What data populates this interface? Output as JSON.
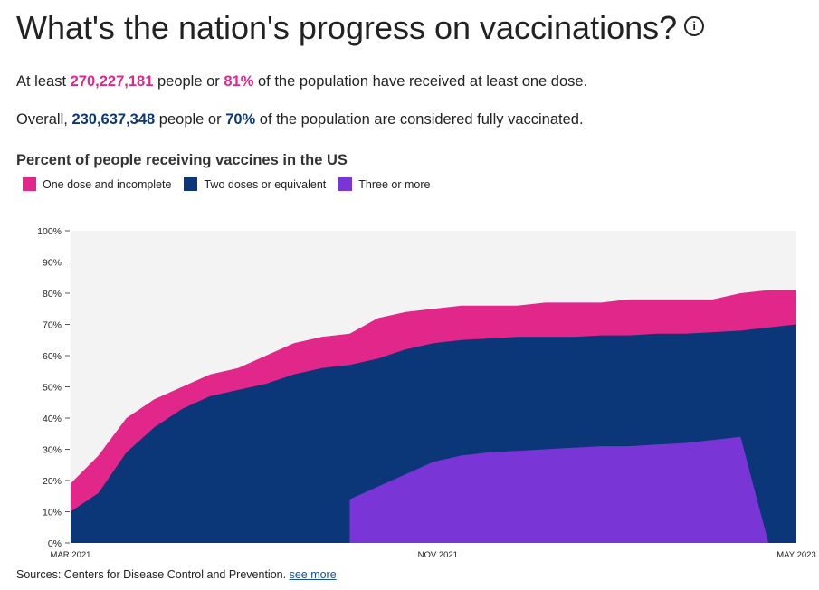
{
  "header": {
    "title": "What's the nation's progress on vaccinations?",
    "info_glyph": "i",
    "info_icon": "info-circle-icon"
  },
  "stats": {
    "line1_prefix": "At least ",
    "line1_count": "270,227,181",
    "line1_mid": " people or ",
    "line1_pct": "81%",
    "line1_suffix": " of the population have received at least one dose.",
    "line2_prefix": "Overall, ",
    "line2_count": "230,637,348",
    "line2_mid": " people or ",
    "line2_pct": "70%",
    "line2_suffix": " of the population are considered fully vaccinated."
  },
  "colors": {
    "one_dose": "#e1278a",
    "two_doses": "#0b3779",
    "three_plus": "#7a35d6",
    "plot_bg": "#f3f3f3"
  },
  "source": {
    "text": "Sources: Centers for Disease Control and Prevention.",
    "link": "see more"
  },
  "chart_data": {
    "type": "area",
    "title": "Percent of people receiving vaccines in the US",
    "xlabel": "",
    "ylabel": "",
    "x_ticks": [
      "MAR 2021",
      "NOV 2021",
      "MAY 2023"
    ],
    "y_ticks": [
      "0%",
      "10%",
      "20%",
      "30%",
      "40%",
      "50%",
      "60%",
      "70%",
      "80%",
      "90%",
      "100%"
    ],
    "ylim": [
      0,
      100
    ],
    "xlim": [
      "2021-03",
      "2023-05"
    ],
    "grid": false,
    "legend": "top-left",
    "x": [
      "2021-03",
      "2021-04",
      "2021-05",
      "2021-06",
      "2021-07",
      "2021-08",
      "2021-09",
      "2021-10",
      "2021-11",
      "2021-12",
      "2022-01",
      "2022-02",
      "2022-03",
      "2022-04",
      "2022-05",
      "2022-06",
      "2022-07",
      "2022-08",
      "2022-09",
      "2022-10",
      "2022-11",
      "2022-12",
      "2023-01",
      "2023-02",
      "2023-03",
      "2023-04",
      "2023-05"
    ],
    "series": [
      {
        "name": "One dose and incomplete",
        "color": "#e1278a",
        "values": [
          19,
          28,
          40,
          46,
          50,
          54,
          56,
          60,
          64,
          66,
          67,
          72,
          74,
          75,
          76,
          76,
          76,
          77,
          77,
          77,
          78,
          78,
          78,
          78,
          80,
          81,
          81
        ]
      },
      {
        "name": "Two doses or equivalent",
        "color": "#0b3779",
        "values": [
          10,
          16,
          29,
          37,
          43,
          47,
          49,
          51,
          54,
          56,
          57,
          59,
          62,
          64,
          65,
          65.5,
          66,
          66,
          66,
          66.5,
          66.5,
          67,
          67,
          67.5,
          68,
          69,
          70
        ]
      },
      {
        "name": "Three or more",
        "color": "#7a35d6",
        "values": [
          null,
          null,
          null,
          null,
          null,
          null,
          null,
          null,
          null,
          null,
          14,
          18,
          22,
          26,
          28,
          29,
          29.5,
          30,
          30.5,
          31,
          31,
          31.5,
          32,
          33,
          34,
          0,
          0
        ]
      }
    ]
  }
}
